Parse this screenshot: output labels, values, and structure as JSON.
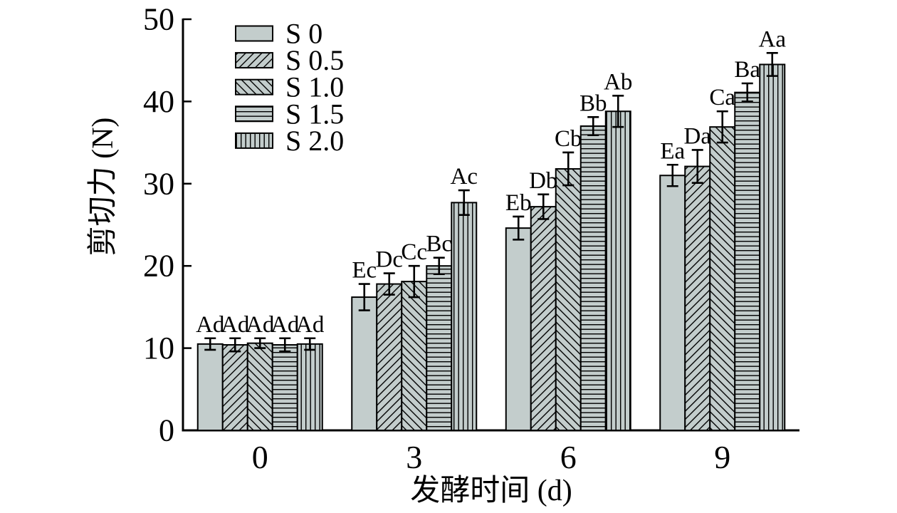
{
  "figure": {
    "background_color": "#ffffff"
  },
  "chart_data": {
    "type": "bar",
    "title": "",
    "xlabel": "发酵时间 (d)",
    "ylabel": "剪切力 (N)",
    "categories": [
      "0",
      "3",
      "6",
      "9"
    ],
    "ylim": [
      0,
      50
    ],
    "yticks": [
      0,
      10,
      20,
      30,
      40,
      50
    ],
    "grid": false,
    "bar_fill_color": "#c3cdcc",
    "bar_edge_color": "#000000",
    "error_bar_color": "#000000",
    "legend": {
      "position": "top-left-inside",
      "entries": [
        "S 0",
        "S 0.5",
        "S 1.0",
        "S 1.5",
        "S 2.0"
      ]
    },
    "series": [
      {
        "name": "S 0",
        "pattern": "solid",
        "values": [
          10.5,
          16.2,
          24.6,
          31.0
        ],
        "errors": [
          0.7,
          1.6,
          1.4,
          1.3
        ],
        "sig_labels": [
          "Ad",
          "Ec",
          "Eb",
          "Ea"
        ]
      },
      {
        "name": "S 0.5",
        "pattern": "diagonal-forward",
        "values": [
          10.4,
          17.8,
          27.2,
          32.1
        ],
        "errors": [
          0.8,
          1.3,
          1.5,
          2.0
        ],
        "sig_labels": [
          "Ad",
          "Dc",
          "Db",
          "Da"
        ]
      },
      {
        "name": "S 1.0",
        "pattern": "diagonal-backward",
        "values": [
          10.6,
          18.1,
          31.8,
          36.9
        ],
        "errors": [
          0.6,
          1.9,
          2.0,
          1.9
        ],
        "sig_labels": [
          "Ad",
          "Cc",
          "Cb",
          "Ca"
        ]
      },
      {
        "name": "S 1.5",
        "pattern": "horizontal",
        "values": [
          10.4,
          20.0,
          37.0,
          41.1
        ],
        "errors": [
          0.8,
          1.0,
          1.1,
          1.1
        ],
        "sig_labels": [
          "Ad",
          "Bc",
          "Bb",
          "Ba"
        ]
      },
      {
        "name": "S 2.0",
        "pattern": "vertical",
        "values": [
          10.5,
          27.7,
          38.8,
          44.5
        ],
        "errors": [
          0.7,
          1.5,
          1.9,
          1.4
        ],
        "sig_labels": [
          "Ad",
          "Ac",
          "Ab",
          "Aa"
        ]
      }
    ]
  }
}
